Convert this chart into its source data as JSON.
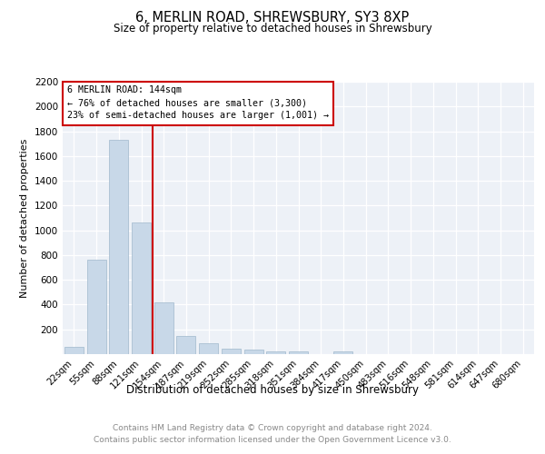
{
  "title": "6, MERLIN ROAD, SHREWSBURY, SY3 8XP",
  "subtitle": "Size of property relative to detached houses in Shrewsbury",
  "xlabel": "Distribution of detached houses by size in Shrewsbury",
  "ylabel": "Number of detached properties",
  "bar_labels": [
    "22sqm",
    "55sqm",
    "88sqm",
    "121sqm",
    "154sqm",
    "187sqm",
    "219sqm",
    "252sqm",
    "285sqm",
    "318sqm",
    "351sqm",
    "384sqm",
    "417sqm",
    "450sqm",
    "483sqm",
    "516sqm",
    "548sqm",
    "581sqm",
    "614sqm",
    "647sqm",
    "680sqm"
  ],
  "bar_values": [
    60,
    760,
    1730,
    1060,
    420,
    150,
    85,
    45,
    35,
    25,
    20,
    0,
    20,
    0,
    0,
    0,
    0,
    0,
    0,
    0,
    0
  ],
  "bar_color": "#c8d8e8",
  "bar_edgecolor": "#a0b8cc",
  "property_line_x": 3.5,
  "property_line_label": "6 MERLIN ROAD: 144sqm",
  "annotation_line1": "← 76% of detached houses are smaller (3,300)",
  "annotation_line2": "23% of semi-detached houses are larger (1,001) →",
  "annotation_box_color": "#cc0000",
  "ylim": [
    0,
    2200
  ],
  "yticks": [
    0,
    200,
    400,
    600,
    800,
    1000,
    1200,
    1400,
    1600,
    1800,
    2000,
    2200
  ],
  "footer_line1": "Contains HM Land Registry data © Crown copyright and database right 2024.",
  "footer_line2": "Contains public sector information licensed under the Open Government Licence v3.0.",
  "plot_bg_color": "#edf1f7"
}
